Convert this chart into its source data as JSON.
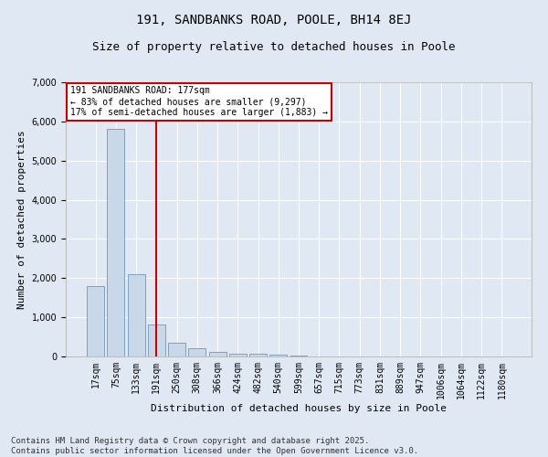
{
  "title": "191, SANDBANKS ROAD, POOLE, BH14 8EJ",
  "subtitle": "Size of property relative to detached houses in Poole",
  "xlabel": "Distribution of detached houses by size in Poole",
  "ylabel": "Number of detached properties",
  "categories": [
    "17sqm",
    "75sqm",
    "133sqm",
    "191sqm",
    "250sqm",
    "308sqm",
    "366sqm",
    "424sqm",
    "482sqm",
    "540sqm",
    "599sqm",
    "657sqm",
    "715sqm",
    "773sqm",
    "831sqm",
    "889sqm",
    "947sqm",
    "1006sqm",
    "1064sqm",
    "1122sqm",
    "1180sqm"
  ],
  "values": [
    1800,
    5820,
    2100,
    820,
    340,
    200,
    120,
    80,
    65,
    50,
    35,
    0,
    0,
    0,
    0,
    0,
    0,
    0,
    0,
    0,
    0
  ],
  "bar_color": "#c8d8e8",
  "bar_edge_color": "#5a8ab0",
  "vline_x_index": 3,
  "vline_color": "#cc0000",
  "annotation_text": "191 SANDBANKS ROAD: 177sqm\n← 83% of detached houses are smaller (9,297)\n17% of semi-detached houses are larger (1,883) →",
  "annotation_box_color": "#ffffff",
  "annotation_box_edge_color": "#cc0000",
  "ylim": [
    0,
    7000
  ],
  "yticks": [
    0,
    1000,
    2000,
    3000,
    4000,
    5000,
    6000,
    7000
  ],
  "background_color": "#e0e8f4",
  "plot_bg_color": "#e0e8f4",
  "footer": "Contains HM Land Registry data © Crown copyright and database right 2025.\nContains public sector information licensed under the Open Government Licence v3.0.",
  "title_fontsize": 10,
  "subtitle_fontsize": 9,
  "axis_label_fontsize": 8,
  "tick_fontsize": 7,
  "footer_fontsize": 6.5
}
